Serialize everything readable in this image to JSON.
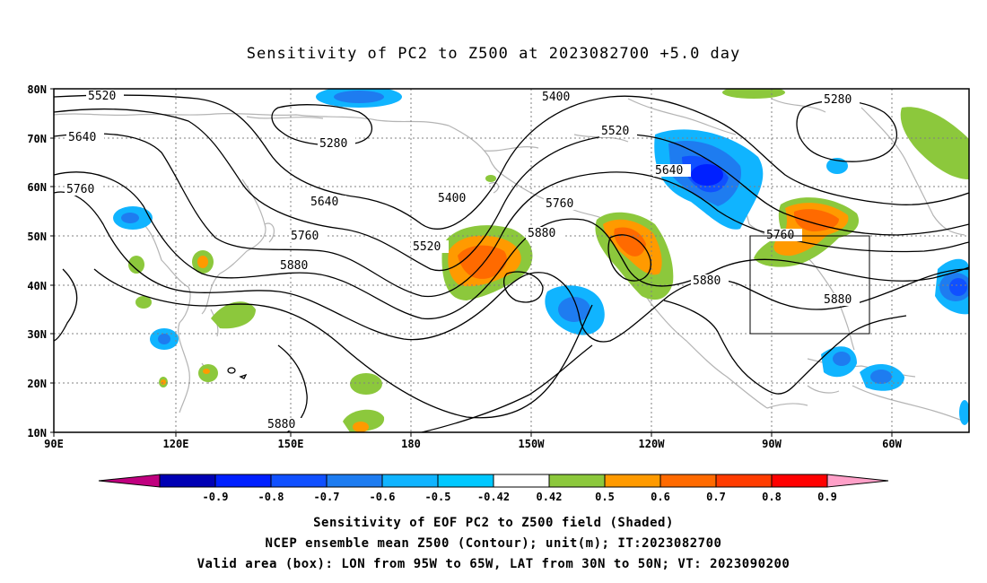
{
  "title": "Sensitivity of PC2 to Z500 at 2023082700 +5.0 day",
  "lat_labels": [
    "80N",
    "70N",
    "60N",
    "50N",
    "40N",
    "30N",
    "20N",
    "10N"
  ],
  "lon_labels": [
    "90E",
    "120E",
    "150E",
    "180",
    "150W",
    "120W",
    "90W",
    "60W"
  ],
  "colorbar": {
    "labels": [
      "-0.9",
      "-0.8",
      "-0.7",
      "-0.6",
      "-0.5",
      "-0.42",
      "0.42",
      "0.5",
      "0.6",
      "0.7",
      "0.8",
      "0.9"
    ],
    "colors": [
      "#c0007f",
      "#0000b4",
      "#0020ff",
      "#1050ff",
      "#1e7cf0",
      "#10b4ff",
      "#00c8ff",
      "#ffffff",
      "#8cc83c",
      "#ff9a00",
      "#ff6a00",
      "#ff3c00",
      "#ff0000",
      "#ffa0c8"
    ]
  },
  "contour_labels": [
    "5520",
    "5640",
    "5760",
    "5280",
    "5640",
    "5760",
    "5880",
    "5400",
    "5520",
    "5400",
    "5520",
    "5640",
    "5760",
    "5880",
    "5880",
    "5280",
    "5760",
    "5880",
    "5880"
  ],
  "captions": [
    "Sensitivity of EOF PC2 to Z500 field (Shaded)",
    "NCEP ensemble mean Z500 (Contour); unit(m); IT:2023082700",
    "Valid area (box): LON from 95W to 65W, LAT from 30N to 50N; VT: 2023090200"
  ],
  "valid_box": {
    "lon": [
      "95W",
      "65W"
    ],
    "lat": [
      "30N",
      "50N"
    ]
  }
}
